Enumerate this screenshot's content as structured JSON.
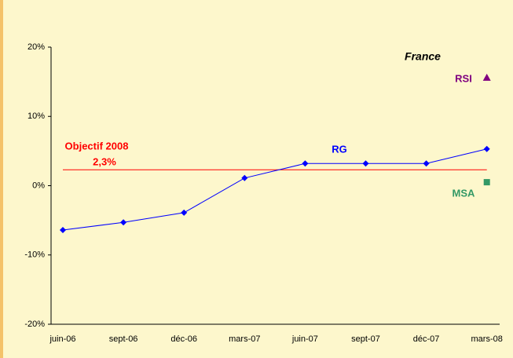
{
  "chart_data": {
    "type": "line",
    "title": "France",
    "categories": [
      "juin-06",
      "sept-06",
      "déc-06",
      "mars-07",
      "juin-07",
      "sept-07",
      "déc-07",
      "mars-08"
    ],
    "series": [
      {
        "name": "RG",
        "color": "#0000ff",
        "marker": "diamond",
        "values": [
          -6.4,
          -5.3,
          -3.9,
          1.1,
          3.2,
          3.2,
          3.2,
          5.3
        ]
      },
      {
        "name": "RSI",
        "color": "#800080",
        "marker": "triangle",
        "values": [
          null,
          null,
          null,
          null,
          null,
          null,
          null,
          15.6
        ]
      },
      {
        "name": "MSA",
        "color": "#339966",
        "marker": "square",
        "values": [
          null,
          null,
          null,
          null,
          null,
          null,
          null,
          0.5
        ]
      }
    ],
    "objective": {
      "name": "Objectif 2008",
      "value": 2.3,
      "value_label": "2,3%",
      "color": "#ff0000"
    },
    "ylim": [
      -20,
      20
    ],
    "yticks": [
      {
        "value": -20,
        "label": "-20%"
      },
      {
        "value": -10,
        "label": "-10%"
      },
      {
        "value": 0,
        "label": "0%"
      },
      {
        "value": 10,
        "label": "10%"
      },
      {
        "value": 20,
        "label": "20%"
      }
    ]
  }
}
